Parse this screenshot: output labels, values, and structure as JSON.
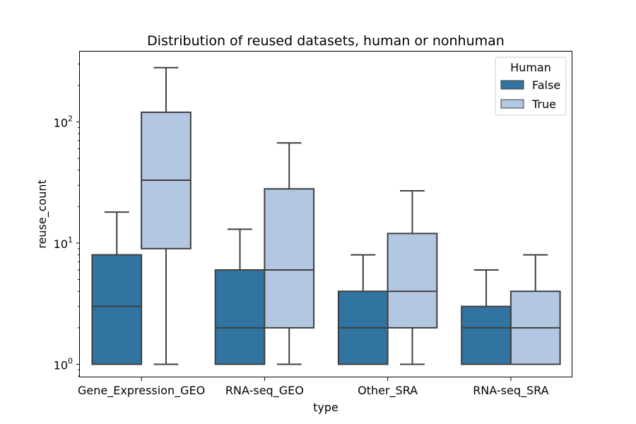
{
  "chart_data": {
    "type": "box",
    "title": "Distribution of reused datasets, human or nonhuman",
    "xlabel": "type",
    "ylabel": "reuse_count",
    "yscale": "log",
    "ylim": [
      0.78,
      380
    ],
    "y_ticks": [
      {
        "value": 1,
        "base": "10",
        "exp": "0"
      },
      {
        "value": 10,
        "base": "10",
        "exp": "1"
      },
      {
        "value": 100,
        "base": "10",
        "exp": "2"
      }
    ],
    "categories": [
      "Gene_Expression_GEO",
      "RNA-seq_GEO",
      "Other_SRA",
      "RNA-seq_SRA"
    ],
    "legend": {
      "title": "Human",
      "placement": "top-right",
      "entries": [
        {
          "label": "False",
          "color": "#3274a1"
        },
        {
          "label": "True",
          "color": "#b3c7e2"
        }
      ]
    },
    "series": [
      {
        "name": "False",
        "color": "#3274a1",
        "boxes": [
          {
            "whisker_low": 1,
            "q1": 1,
            "median": 3,
            "q3": 8,
            "whisker_high": 18
          },
          {
            "whisker_low": 1,
            "q1": 1,
            "median": 2,
            "q3": 6,
            "whisker_high": 13
          },
          {
            "whisker_low": 1,
            "q1": 1,
            "median": 2,
            "q3": 4,
            "whisker_high": 8
          },
          {
            "whisker_low": 1,
            "q1": 1,
            "median": 2,
            "q3": 3,
            "whisker_high": 6
          }
        ]
      },
      {
        "name": "True",
        "color": "#b3c7e2",
        "boxes": [
          {
            "whisker_low": 1,
            "q1": 9,
            "median": 33,
            "q3": 120,
            "whisker_high": 280
          },
          {
            "whisker_low": 1,
            "q1": 2,
            "median": 6,
            "q3": 28,
            "whisker_high": 67
          },
          {
            "whisker_low": 1,
            "q1": 2,
            "median": 4,
            "q3": 12,
            "whisker_high": 27
          },
          {
            "whisker_low": 1,
            "q1": 1,
            "median": 2,
            "q3": 4,
            "whisker_high": 8
          }
        ]
      }
    ],
    "line_color": "#3f3f3f"
  }
}
